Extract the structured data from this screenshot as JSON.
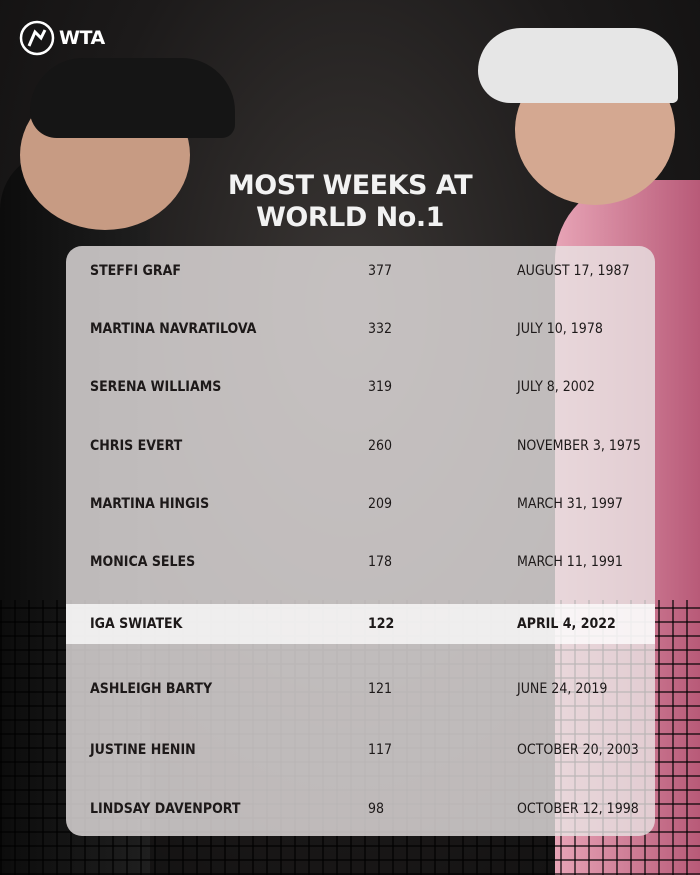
{
  "brand": {
    "logo_text": "WTA"
  },
  "title_lines": [
    "MOST WEEKS AT",
    "WORLD No.1"
  ],
  "rows": [
    {
      "name": "STEFFI GRAF",
      "weeks": "377",
      "date": "AUGUST 17, 1987"
    },
    {
      "name": "MARTINA NAVRATILOVA",
      "weeks": "332",
      "date": "JULY 10, 1978"
    },
    {
      "name": "SERENA WILLIAMS",
      "weeks": "319",
      "date": "JULY 8, 2002"
    },
    {
      "name": "CHRIS EVERT",
      "weeks": "260",
      "date": "NOVEMBER 3, 1975"
    },
    {
      "name": "MARTINA HINGIS",
      "weeks": "209",
      "date": "MARCH 31, 1997"
    },
    {
      "name": "MONICA SELES",
      "weeks": "178",
      "date": "MARCH 11, 1991"
    },
    {
      "name": "IGA SWIATEK",
      "weeks": "122",
      "date": "APRIL 4, 2022",
      "highlighted": true
    },
    {
      "name": "ASHLEIGH BARTY",
      "weeks": "121",
      "date": "JUNE 24, 2019"
    },
    {
      "name": "JUSTINE HENIN",
      "weeks": "117",
      "date": "OCTOBER 20, 2003"
    },
    {
      "name": "LINDSAY DAVENPORT",
      "weeks": "98",
      "date": "OCTOBER 12, 1998"
    }
  ],
  "colors": {
    "highlight": "#ffffff",
    "text": "#1d1919",
    "title": "#f2f2f2"
  }
}
